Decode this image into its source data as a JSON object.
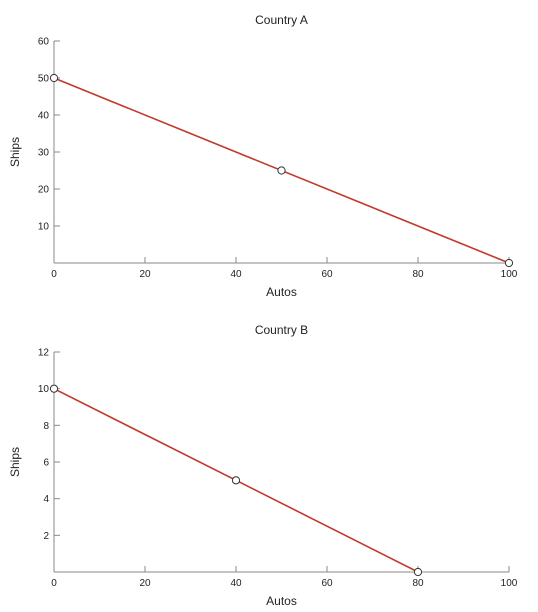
{
  "chart_data": [
    {
      "type": "line",
      "title": "Country A",
      "xlabel": "Autos",
      "ylabel": "Ships",
      "xlim": [
        0,
        100
      ],
      "ylim": [
        0,
        60
      ],
      "xticks": [
        0,
        20,
        40,
        60,
        80,
        100
      ],
      "yticks": [
        10,
        20,
        30,
        40,
        50,
        60
      ],
      "grid": false,
      "line_color": "#c0392b",
      "series": [
        {
          "x": [
            0,
            100
          ],
          "y": [
            50,
            0
          ]
        }
      ],
      "points": [
        {
          "x": 0,
          "y": 50
        },
        {
          "x": 50,
          "y": 25
        },
        {
          "x": 100,
          "y": 0
        }
      ]
    },
    {
      "type": "line",
      "title": "Country B",
      "xlabel": "Autos",
      "ylabel": "Ships",
      "xlim": [
        0,
        100
      ],
      "ylim": [
        0,
        12
      ],
      "xticks": [
        0,
        20,
        40,
        60,
        80,
        100
      ],
      "yticks": [
        2,
        4,
        6,
        8,
        10,
        12
      ],
      "grid": false,
      "line_color": "#c0392b",
      "series": [
        {
          "x": [
            0,
            80
          ],
          "y": [
            10,
            0
          ]
        }
      ],
      "points": [
        {
          "x": 0,
          "y": 10
        },
        {
          "x": 40,
          "y": 5
        },
        {
          "x": 80,
          "y": 0
        }
      ]
    }
  ]
}
